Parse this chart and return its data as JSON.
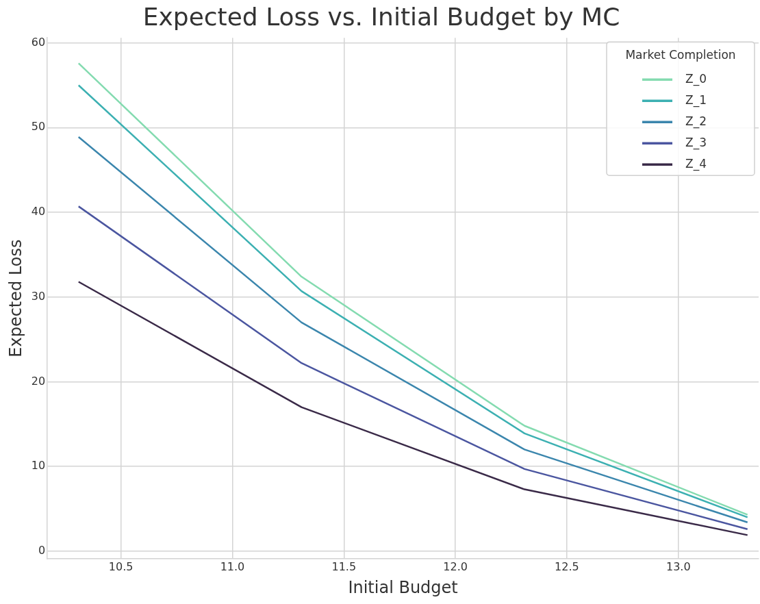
{
  "chart_data": {
    "type": "line",
    "title": "Expected Loss vs. Initial Budget by MC",
    "xlabel": "Initial Budget",
    "ylabel": "Expected Loss",
    "legend_title": "Market Completion",
    "x": [
      10.31,
      11.31,
      12.31,
      13.31
    ],
    "series": [
      {
        "name": "Z_0",
        "color": "#84dbb0",
        "values": [
          57.6,
          32.4,
          14.8,
          4.3
        ]
      },
      {
        "name": "Z_1",
        "color": "#3cb0b2",
        "values": [
          55.0,
          30.7,
          13.9,
          4.0
        ]
      },
      {
        "name": "Z_2",
        "color": "#3b86ad",
        "values": [
          48.9,
          27.0,
          12.0,
          3.4
        ]
      },
      {
        "name": "Z_3",
        "color": "#4b56a0",
        "values": [
          40.7,
          22.2,
          9.7,
          2.6
        ]
      },
      {
        "name": "Z_4",
        "color": "#3a2a48",
        "values": [
          31.8,
          17.0,
          7.3,
          1.9
        ]
      }
    ],
    "xlim": [
      10.17,
      13.36
    ],
    "xticks": [
      {
        "value": 10.5,
        "label": "10.5"
      },
      {
        "value": 11,
        "label": "11.0"
      },
      {
        "value": 11.5,
        "label": "11.5"
      },
      {
        "value": 12,
        "label": "12.0"
      },
      {
        "value": 12.5,
        "label": "12.5"
      },
      {
        "value": 13,
        "label": "13.0"
      }
    ],
    "ylim": [
      -0.9,
      60.6
    ],
    "yticks": [
      0,
      10,
      20,
      30,
      40,
      50,
      60
    ],
    "grid": true,
    "legend": "top right",
    "marker": "none",
    "line_style": "solid"
  }
}
